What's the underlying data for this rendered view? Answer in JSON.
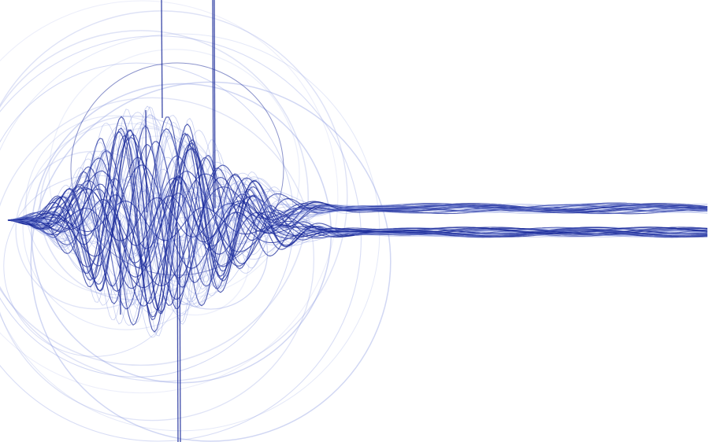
{
  "colors": {
    "background": "#ffffff",
    "stroke_dark": "#1a2a9a",
    "stroke_light": "#8a9ae0"
  },
  "art": {
    "wave_line_count": 70,
    "circle_count": 22
  }
}
